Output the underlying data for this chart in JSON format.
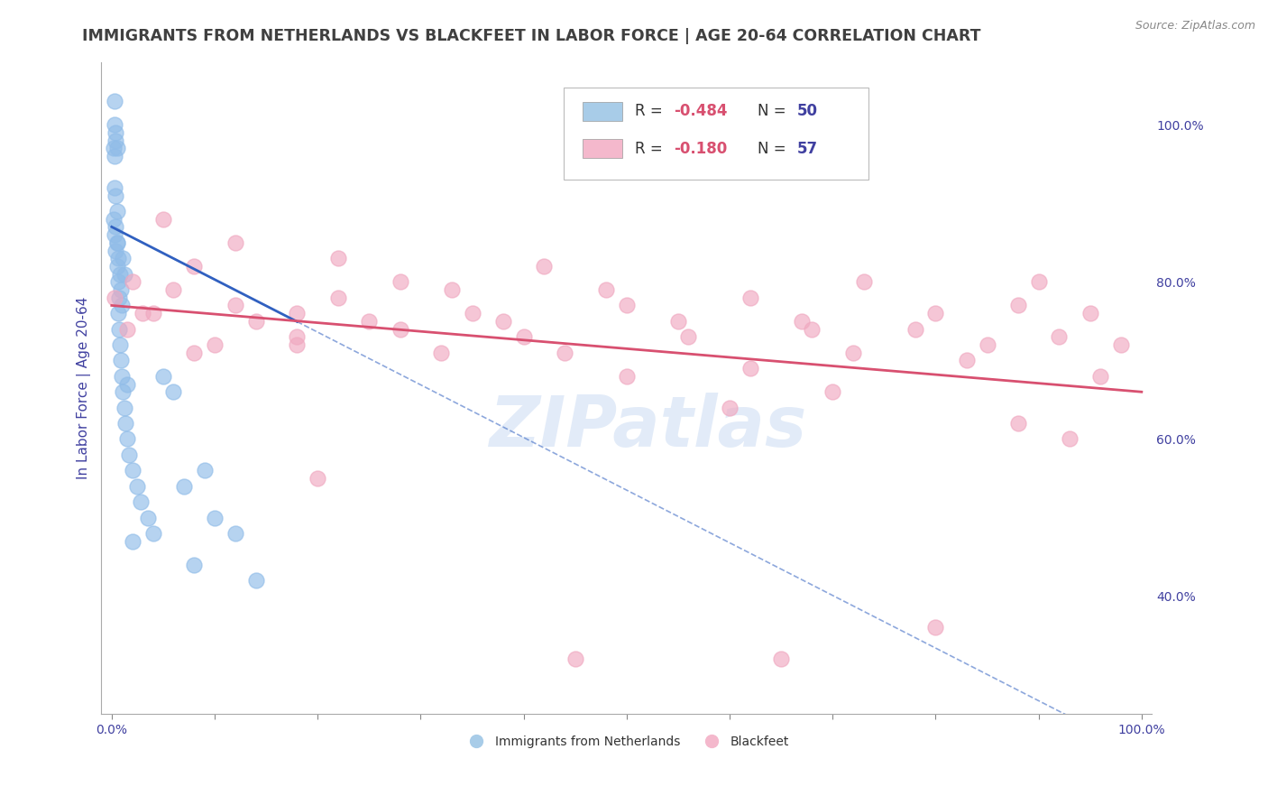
{
  "title": "IMMIGRANTS FROM NETHERLANDS VS BLACKFEET IN LABOR FORCE | AGE 20-64 CORRELATION CHART",
  "source": "Source: ZipAtlas.com",
  "ylabel": "In Labor Force | Age 20-64",
  "right_ytick_labels": [
    "40.0%",
    "60.0%",
    "80.0%",
    "100.0%"
  ],
  "right_ytick_values": [
    40.0,
    60.0,
    80.0,
    100.0
  ],
  "xtick_labels": [
    "0.0%",
    "",
    "",
    "",
    "",
    "",
    "",
    "",
    "",
    "",
    "100.0%"
  ],
  "xtick_values": [
    0,
    10,
    20,
    30,
    40,
    50,
    60,
    70,
    80,
    90,
    100
  ],
  "xlim": [
    -1.0,
    101.0
  ],
  "ylim": [
    25.0,
    108.0
  ],
  "background_color": "#ffffff",
  "grid_color": "#d8d8d8",
  "watermark": "ZIPatlas",
  "blue_scatter_x": [
    0.2,
    0.3,
    0.2,
    0.4,
    0.5,
    0.3,
    0.4,
    0.5,
    0.6,
    0.4,
    0.5,
    0.6,
    0.7,
    0.8,
    0.9,
    1.0,
    1.1,
    1.2,
    0.3,
    0.5,
    0.6,
    0.7,
    0.8,
    0.9,
    1.0,
    1.1,
    1.2,
    1.3,
    1.5,
    1.7,
    2.0,
    2.5,
    2.8,
    3.5,
    4.0,
    5.0,
    6.0,
    7.0,
    8.0,
    9.0,
    10.0,
    12.0,
    0.4,
    0.5,
    0.3,
    0.3,
    0.4,
    1.5,
    2.0,
    14.0
  ],
  "blue_scatter_y": [
    97,
    92,
    88,
    91,
    89,
    86,
    87,
    85,
    83,
    84,
    82,
    80,
    78,
    81,
    79,
    77,
    83,
    81,
    96,
    85,
    76,
    74,
    72,
    70,
    68,
    66,
    64,
    62,
    60,
    58,
    56,
    54,
    52,
    50,
    48,
    68,
    66,
    54,
    44,
    56,
    50,
    48,
    99,
    97,
    103,
    100,
    98,
    67,
    47,
    42
  ],
  "pink_scatter_x": [
    0.3,
    1.5,
    5.0,
    8.0,
    12.0,
    18.0,
    22.0,
    28.0,
    35.0,
    42.0,
    48.0,
    55.0,
    62.0,
    68.0,
    73.0,
    80.0,
    85.0,
    90.0,
    95.0,
    98.0,
    3.0,
    6.0,
    10.0,
    14.0,
    18.0,
    22.0,
    28.0,
    33.0,
    38.0,
    44.0,
    50.0,
    56.0,
    62.0,
    67.0,
    72.0,
    78.0,
    83.0,
    88.0,
    92.0,
    96.0,
    2.0,
    4.0,
    8.0,
    12.0,
    18.0,
    25.0,
    32.0,
    40.0,
    50.0,
    60.0,
    70.0,
    80.0,
    88.0,
    93.0,
    20.0,
    45.0,
    65.0
  ],
  "pink_scatter_y": [
    78,
    74,
    88,
    82,
    85,
    76,
    83,
    80,
    76,
    82,
    79,
    75,
    78,
    74,
    80,
    76,
    72,
    80,
    76,
    72,
    76,
    79,
    72,
    75,
    72,
    78,
    74,
    79,
    75,
    71,
    77,
    73,
    69,
    75,
    71,
    74,
    70,
    77,
    73,
    68,
    80,
    76,
    71,
    77,
    73,
    75,
    71,
    73,
    68,
    64,
    66,
    36,
    62,
    60,
    55,
    32,
    32
  ],
  "blue_line_x": [
    0,
    100
  ],
  "blue_line_y": [
    87.0,
    20.0
  ],
  "blue_solid_end_x": 18,
  "blue_solid_end_y": 75.0,
  "pink_line_x": [
    0,
    100
  ],
  "pink_line_y": [
    77.0,
    66.0
  ],
  "blue_line_color": "#3060c0",
  "pink_line_color": "#d85070",
  "blue_scatter_color": "#90bce8",
  "pink_scatter_color": "#f0a8c0",
  "title_color": "#404040",
  "axis_label_color": "#4040a0",
  "tick_label_color": "#4040a0",
  "title_fontsize": 12.5,
  "axis_label_fontsize": 11,
  "tick_fontsize": 10,
  "legend_r_values": [
    "-0.484",
    "-0.180"
  ],
  "legend_n_values": [
    "50",
    "57"
  ],
  "legend_colors": [
    "#a8cce8",
    "#f4b8cc"
  ],
  "footer_labels": [
    "Immigrants from Netherlands",
    "Blackfeet"
  ],
  "footer_colors": [
    "#a8cce8",
    "#f4b8cc"
  ]
}
